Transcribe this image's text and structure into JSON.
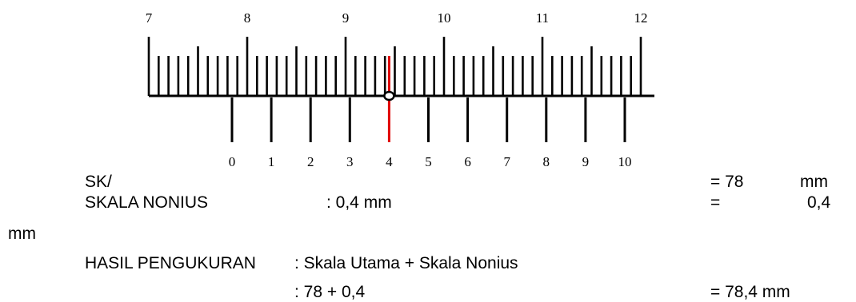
{
  "diagram": {
    "main_scale": {
      "labels": [
        "7",
        "8",
        "9",
        "10",
        "11",
        "12"
      ]
    },
    "vernier_scale": {
      "labels": [
        "0",
        "1",
        "2",
        "3",
        "4",
        "5",
        "6",
        "7",
        "8",
        "9",
        "10"
      ],
      "aligned_mark": 4
    },
    "colors": {
      "ink": "#000000",
      "highlight": "#e00000"
    }
  },
  "readout": {
    "main_label": "SK/",
    "main_result": "= 78",
    "main_unit": "mm",
    "nonius_label": "SKALA NONIUS",
    "nonius_value": ": 0,4 mm",
    "nonius_eq": "=",
    "nonius_result": "0,4",
    "nonius_unit": "mm",
    "result_label": "HASIL PENGUKURAN",
    "result_formula": ": Skala Utama + Skala Nonius",
    "result_calc": ": 78 + 0,4",
    "result_value": "= 78,4  mm"
  }
}
